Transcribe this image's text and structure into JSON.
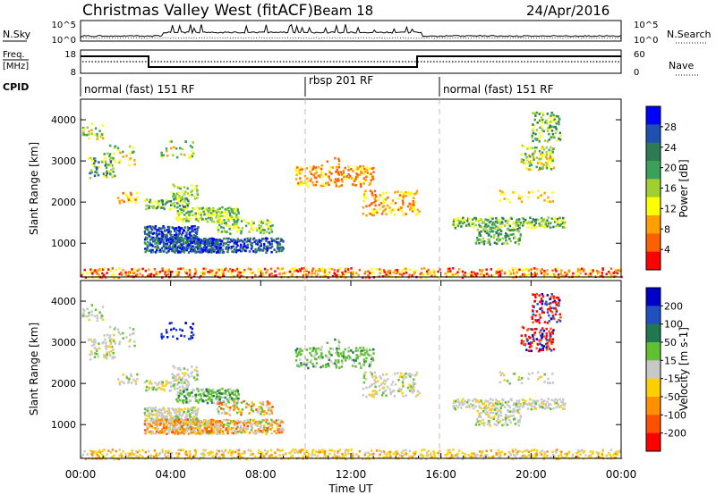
{
  "header": {
    "radar": "Christmas Valley West (fitACF)",
    "beam": "Beam 18",
    "date": "24/Apr/2016"
  },
  "left_labels": {
    "nsky": "N.Sky",
    "freq": "Freq.",
    "freq_unit": "[MHz]",
    "cpid": "CPID"
  },
  "right_labels": {
    "nsearch": "N.Search",
    "nave": "Nave"
  },
  "noise_panel": {
    "left_ticks": [
      "10^5",
      "10^0"
    ],
    "right_ticks": [
      "10^5",
      "10^0"
    ]
  },
  "freq_panel": {
    "left_ticks": [
      "18",
      "8"
    ],
    "right_ticks": [
      "60",
      "0"
    ]
  },
  "cpid_segments": [
    {
      "label": "normal (fast) 151 RF",
      "start_hour": 0
    },
    {
      "label": "rbsp 201 RF",
      "start_hour": 10
    },
    {
      "label": "normal (fast) 151 RF",
      "start_hour": 16
    }
  ],
  "colors": {
    "power_scale": [
      "#0000ff",
      "#1f4fb0",
      "#2e7a52",
      "#3aa05a",
      "#a0d030",
      "#ffff00",
      "#ffa000",
      "#ff6000",
      "#ff0000"
    ],
    "velocity_scale": [
      "#0000c8",
      "#2050c0",
      "#207850",
      "#60c030",
      "#c8c8c8",
      "#ffd000",
      "#ff9000",
      "#ff5000",
      "#ff0000"
    ]
  },
  "chart_data": [
    {
      "type": "heatmap",
      "title": "",
      "ylabel": "Slant Range [km]",
      "ylim": [
        180,
        4500
      ],
      "yticks": [
        1000,
        2000,
        3000,
        4000
      ],
      "colorbar_label": "Power [dB]",
      "colorbar_ticks": [
        "28",
        "24",
        "20",
        "16",
        "12",
        "8",
        "4"
      ]
    },
    {
      "type": "heatmap",
      "title": "",
      "xlabel": "Time UT",
      "ylabel": "Slant Range [km]",
      "ylim": [
        180,
        4500
      ],
      "yticks": [
        1000,
        2000,
        3000,
        4000
      ],
      "xticks": [
        "00:00",
        "04:00",
        "08:00",
        "12:00",
        "16:00",
        "20:00",
        "00:00"
      ],
      "colorbar_label": "Velocity [m s-1]",
      "colorbar_ticks": [
        "200",
        "100",
        "50",
        "15",
        "-15",
        "-50",
        "-100",
        "-200"
      ]
    }
  ]
}
